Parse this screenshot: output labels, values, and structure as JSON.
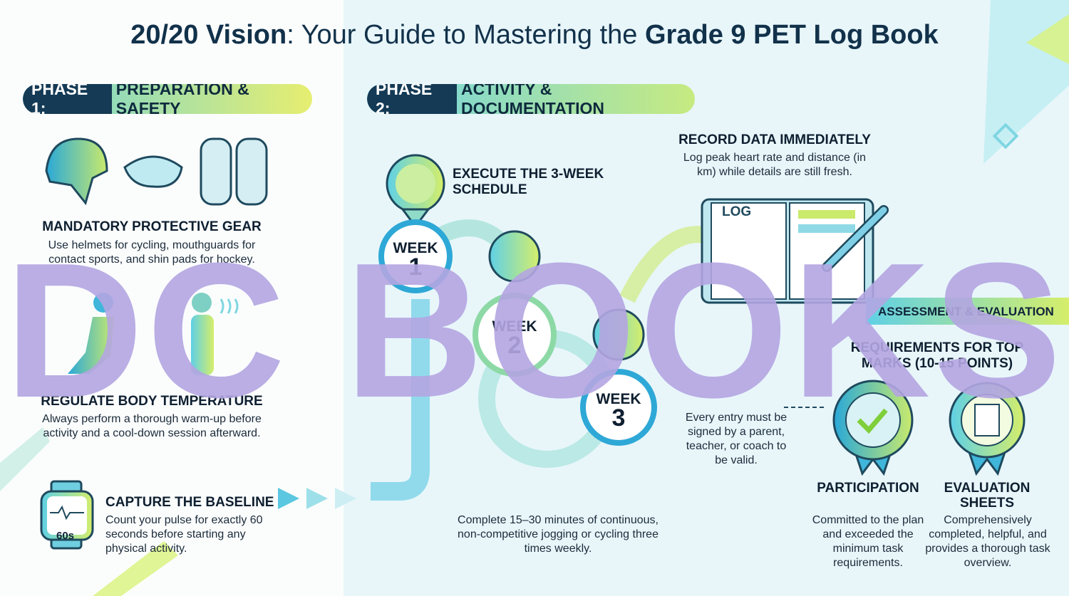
{
  "title": {
    "lead": "20/20 Vision",
    "middle": ": Your Guide to Mastering the ",
    "tail": "Grade 9 PET Log Book"
  },
  "phase1": {
    "label": "PHASE 1:",
    "name": "PREPARATION & SAFETY",
    "gear": {
      "heading": "MANDATORY PROTECTIVE GEAR",
      "text": "Use helmets for cycling, mouthguards for contact sports, and shin pads for hockey."
    },
    "temperature": {
      "heading": "REGULATE BODY TEMPERATURE",
      "text": "Always perform a thorough warm-up before activity and a cool-down session afterward."
    },
    "baseline": {
      "heading": "CAPTURE THE BASELINE",
      "text": "Count your pulse for exactly 60 seconds before starting any physical activity.",
      "watch_label": "60s"
    }
  },
  "phase2": {
    "label": "PHASE 2:",
    "name": "ACTIVITY & DOCUMENTATION",
    "schedule": {
      "heading": "EXECUTE THE 3-WEEK SCHEDULE",
      "text": "Complete 15–30 minutes of continuous, non-competitive jogging or cycling three times weekly."
    },
    "weeks": [
      {
        "label": "WEEK",
        "number": 1
      },
      {
        "label": "WEEK",
        "number": 2
      },
      {
        "label": "WEEK",
        "number": 3
      }
    ],
    "record": {
      "heading": "RECORD DATA IMMEDIATELY",
      "text": "Log peak heart rate and distance (in km) while details are still fresh.",
      "book_label": "LOG"
    },
    "signature": "Every entry must be signed by a parent, teacher, or coach to be valid."
  },
  "assessment": {
    "banner": "ASSESSMENT & EVALUATION",
    "heading": "REQUIREMENTS FOR TOP MARKS (10-15 POINTS)",
    "items": [
      {
        "heading": "PARTICIPATION",
        "text": "Committed to the plan and exceeded the minimum task requirements."
      },
      {
        "heading": "EVALUATION SHEETS",
        "text": "Comprehensively completed, helpful, and provides a thorough task overview."
      }
    ]
  },
  "watermark": "DC BOOKS"
}
